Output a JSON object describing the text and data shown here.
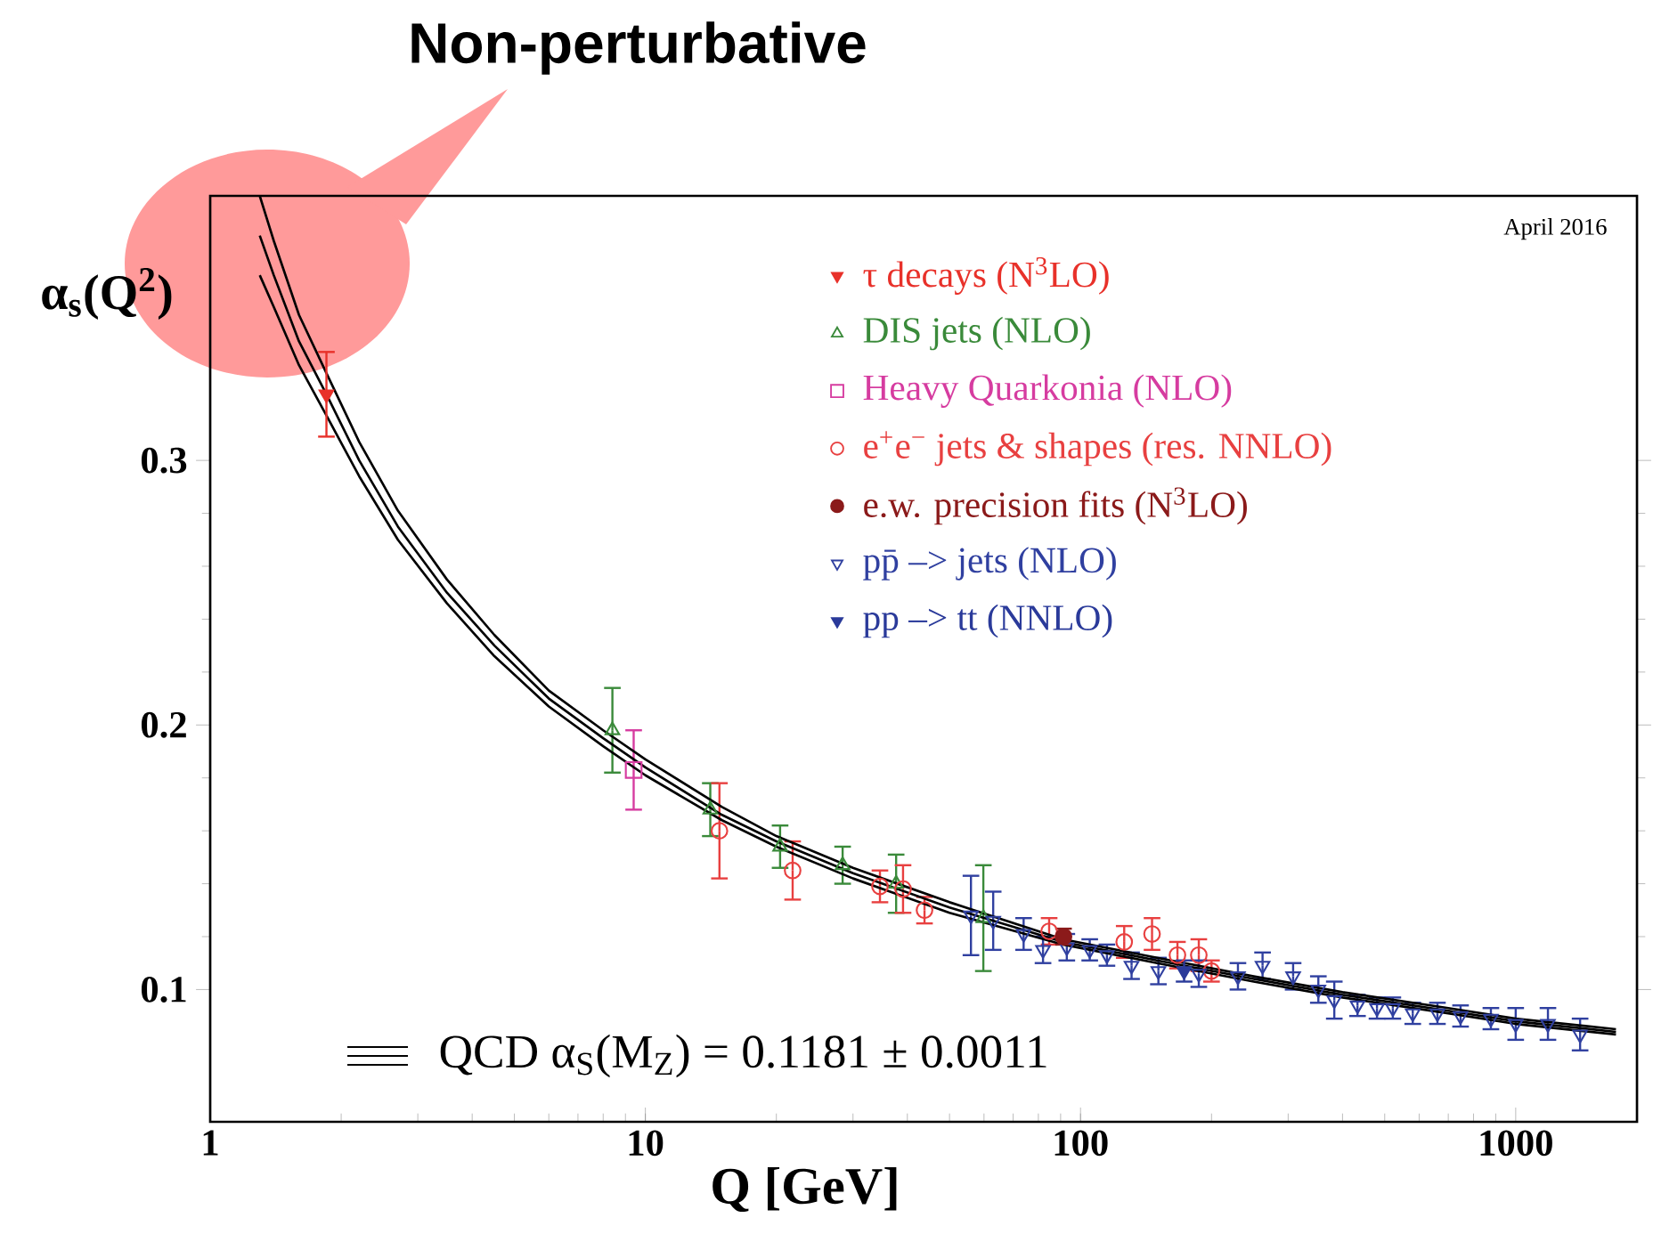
{
  "chart_data": {
    "type": "scatter",
    "xlabel": "Q [GeV]",
    "ylabel": "α$_{s}$(Q$^{2}$)",
    "annotations": [
      "Non-perturbative",
      "April 2016",
      "QCD α$_{S}$(M$_{Z}$) = 0.1181 ± 0.0011"
    ],
    "xlim": [
      1,
      1900
    ],
    "ylim": [
      0.05,
      0.4
    ],
    "xticks": [
      1,
      10,
      100,
      1000
    ],
    "yticks": [
      0.1,
      0.2,
      0.3
    ],
    "log": "x",
    "legend": "top right",
    "series": [
      {
        "name": "τ decays (N$^{3}$LO)",
        "color": "#e8312a",
        "marker": "triangle-down",
        "x": [
          1.85
        ],
        "values": [
          0.325
        ],
        "errors": [
          0.016
        ]
      },
      {
        "name": "DIS jets (NLO)",
        "color": "#3a8a3a",
        "marker": "triangle-open",
        "x": [
          8.4,
          14.1,
          20.4,
          28.4,
          37.7,
          59.8
        ],
        "values": [
          0.198,
          0.168,
          0.154,
          0.147,
          0.14,
          0.127
        ],
        "errors": [
          0.016,
          0.01,
          0.008,
          0.007,
          0.011,
          0.02
        ]
      },
      {
        "name": "Heavy Quarkonia (NLO)",
        "color": "#d63ca0",
        "marker": "square-open",
        "x": [
          9.4
        ],
        "values": [
          0.183
        ],
        "errors": [
          0.015
        ]
      },
      {
        "name": "e$^{+}$e$^{−}$ jets & shapes (res. NNLO)",
        "color": "#e84040",
        "marker": "circle-open",
        "x": [
          14.8,
          21.8,
          34.6,
          39.1,
          43.8,
          84.7,
          126,
          146,
          167,
          187,
          200
        ],
        "values": [
          0.16,
          0.145,
          0.139,
          0.138,
          0.13,
          0.122,
          0.118,
          0.121,
          0.113,
          0.113,
          0.107
        ],
        "errors": [
          0.018,
          0.011,
          0.006,
          0.009,
          0.005,
          0.005,
          0.006,
          0.006,
          0.005,
          0.006,
          0.004
        ]
      },
      {
        "name": "e.w. precision fits (N$^{3}$LO)",
        "color": "#8b1a1a",
        "marker": "circle",
        "x": [
          91.4
        ],
        "values": [
          0.12
        ],
        "errors": [
          0.003
        ]
      },
      {
        "name": "pp̄ –> jets (NLO)",
        "color": "#3040a0",
        "marker": "triangle-down-open",
        "x": [
          56,
          63,
          74,
          82,
          93,
          105,
          115,
          131,
          151,
          187,
          230,
          262,
          308,
          352,
          383,
          433,
          480,
          522,
          580,
          661,
          747,
          877,
          1000,
          1186,
          1406
        ],
        "values": [
          0.128,
          0.126,
          0.121,
          0.115,
          0.116,
          0.115,
          0.113,
          0.109,
          0.107,
          0.106,
          0.105,
          0.109,
          0.105,
          0.1,
          0.096,
          0.094,
          0.093,
          0.093,
          0.091,
          0.091,
          0.09,
          0.089,
          0.087,
          0.087,
          0.083
        ],
        "errors": [
          0.015,
          0.011,
          0.006,
          0.005,
          0.005,
          0.004,
          0.004,
          0.005,
          0.005,
          0.005,
          0.005,
          0.005,
          0.005,
          0.005,
          0.007,
          0.004,
          0.004,
          0.004,
          0.004,
          0.004,
          0.004,
          0.004,
          0.006,
          0.006,
          0.006
        ]
      },
      {
        "name": "pp –> tt (NNLO)",
        "color": "#2a3a9a",
        "marker": "triangle-down",
        "x": [
          173
        ],
        "values": [
          0.107
        ],
        "errors": [
          0.004
        ]
      },
      {
        "type": "line",
        "color": "#000000",
        "marker": "none",
        "x": [
          1.3,
          1.4,
          1.6,
          1.85,
          2.2,
          2.7,
          3.5,
          4.5,
          6,
          8,
          10,
          15,
          20,
          30,
          50,
          91.2,
          150,
          250,
          400,
          700,
          1000,
          1700
        ],
        "values": [
          0.385,
          0.37,
          0.345,
          0.325,
          0.3,
          0.275,
          0.25,
          0.23,
          0.21,
          0.195,
          0.184,
          0.166,
          0.156,
          0.144,
          0.131,
          0.118,
          0.111,
          0.104,
          0.098,
          0.092,
          0.088,
          0.084
        ]
      },
      {
        "type": "line",
        "color": "#000000",
        "marker": "none",
        "x": [
          1.3,
          1.4,
          1.6,
          1.85,
          2.2,
          2.7,
          3.5,
          4.5,
          6,
          8,
          10,
          15,
          20,
          30,
          50,
          91.2,
          150,
          250,
          400,
          700,
          1000,
          1700
        ],
        "values": [
          0.37,
          0.358,
          0.336,
          0.317,
          0.294,
          0.27,
          0.246,
          0.226,
          0.207,
          0.192,
          0.181,
          0.164,
          0.154,
          0.142,
          0.129,
          0.117,
          0.11,
          0.103,
          0.097,
          0.091,
          0.087,
          0.083
        ]
      },
      {
        "type": "line",
        "color": "#000000",
        "marker": "none",
        "x": [
          1.3,
          1.4,
          1.6,
          1.85,
          2.2,
          2.7,
          3.5,
          4.5,
          6,
          8,
          10,
          15,
          20,
          30,
          50,
          91.2,
          150,
          250,
          400,
          700,
          1000,
          1700
        ],
        "values": [
          0.4,
          0.383,
          0.355,
          0.333,
          0.307,
          0.281,
          0.255,
          0.234,
          0.213,
          0.198,
          0.187,
          0.169,
          0.158,
          0.146,
          0.133,
          0.119,
          0.112,
          0.105,
          0.099,
          0.093,
          0.089,
          0.085
        ]
      }
    ]
  }
}
